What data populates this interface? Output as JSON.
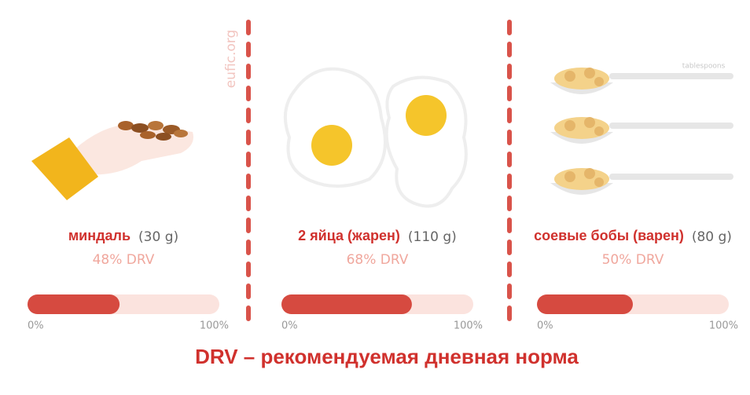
{
  "source": "eufic.org",
  "spoon_note": "tablespoons",
  "items": [
    {
      "name": "миндаль",
      "amount": "(30 g)",
      "drv": {
        "value": 48,
        "label": "48% DRV"
      },
      "scale": [
        {
          "value": 0,
          "label": "0%"
        },
        {
          "value": 100,
          "label": "100%"
        }
      ]
    },
    {
      "name": "2 яйца (жарен)",
      "amount": "(110 g)",
      "drv": {
        "value": 68,
        "label": "68% DRV"
      },
      "scale": [
        {
          "value": 0,
          "label": "0%"
        },
        {
          "value": 100,
          "label": "100%"
        }
      ]
    },
    {
      "name": "соевые бобы (варен)",
      "amount": "(80 g)",
      "drv": {
        "value": 50,
        "label": "50% DRV"
      },
      "scale": [
        {
          "value": 0,
          "label": "0%"
        },
        {
          "value": 100,
          "label": "100%"
        }
      ]
    }
  ],
  "footer": "DRV – рекомендуемая дневная норма"
}
